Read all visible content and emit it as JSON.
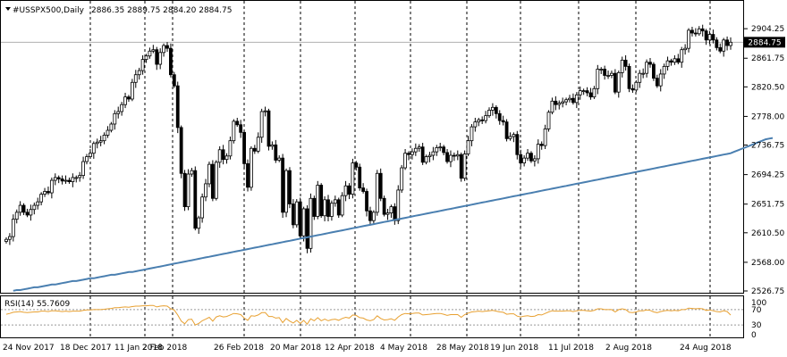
{
  "header": {
    "symbol_label": "#USSPX500,Daily",
    "ohlc_text": "2886.35 2889.75 2884.20 2884.75"
  },
  "current_price_badge": "2884.75",
  "colors": {
    "candle": "#000000",
    "moving_average": "#4a7fb0",
    "rsi_line": "#e8a030",
    "grid": "#000000",
    "badge_bg": "#000000",
    "badge_text": "#ffffff"
  },
  "chart_data": [
    {
      "type": "candlestick",
      "symbol": "#USSPX500",
      "timeframe": "Daily",
      "last_ohlc": {
        "open": 2886.35,
        "high": 2889.75,
        "low": 2884.2,
        "close": 2884.75
      },
      "ylim": [
        2526.75,
        2925.0
      ],
      "y_ticks": [
        "2904.25",
        "2861.75",
        "2820.50",
        "2778.00",
        "2736.75",
        "2694.25",
        "2651.75",
        "2610.50",
        "2568.00",
        "2526.75"
      ],
      "x_tick_labels": [
        "24 Nov 2017",
        "18 Dec 2017",
        "11 Jan 2018",
        "2 Feb 2018",
        "26 Feb 2018",
        "20 Mar 2018",
        "12 Apr 2018",
        "4 May 2018",
        "28 May 2018",
        "19 Jun 2018",
        "11 Jul 2018",
        "2 Aug 2018",
        "24 Aug 2018"
      ],
      "grid": "vertical dashed at date ticks",
      "closes": [
        2601,
        2605,
        2630,
        2640,
        2650,
        2640,
        2636,
        2644,
        2650,
        2655,
        2666,
        2670,
        2668,
        2686,
        2690,
        2688,
        2685,
        2686,
        2684,
        2690,
        2690,
        2693,
        2713,
        2720,
        2725,
        2739,
        2741,
        2743,
        2751,
        2758,
        2767,
        2782,
        2785,
        2795,
        2806,
        2803,
        2827,
        2838,
        2844,
        2860,
        2865,
        2872,
        2874,
        2853,
        2870,
        2880,
        2876,
        2838,
        2822,
        2762,
        2696,
        2648,
        2695,
        2700,
        2617,
        2632,
        2662,
        2681,
        2709,
        2660,
        2712,
        2730,
        2716,
        2721,
        2743,
        2771,
        2766,
        2755,
        2710,
        2676,
        2732,
        2728,
        2748,
        2785,
        2786,
        2735,
        2737,
        2715,
        2718,
        2640,
        2700,
        2652,
        2622,
        2655,
        2606,
        2645,
        2588,
        2660,
        2634,
        2679,
        2635,
        2658,
        2634,
        2653,
        2658,
        2636,
        2664,
        2678,
        2666,
        2711,
        2705,
        2675,
        2670,
        2642,
        2628,
        2640,
        2696,
        2660,
        2637,
        2639,
        2648,
        2628,
        2672,
        2704,
        2725,
        2723,
        2727,
        2732,
        2734,
        2712,
        2720,
        2722,
        2727,
        2733,
        2734,
        2726,
        2713,
        2722,
        2721,
        2723,
        2689,
        2724,
        2743,
        2763,
        2770,
        2773,
        2772,
        2779,
        2787,
        2791,
        2782,
        2772,
        2770,
        2746,
        2749,
        2752,
        2723,
        2711,
        2718,
        2725,
        2714,
        2717,
        2738,
        2736,
        2760,
        2784,
        2800,
        2795,
        2797,
        2799,
        2802,
        2804,
        2798,
        2809,
        2815,
        2815,
        2812,
        2806,
        2818,
        2846,
        2846,
        2837,
        2837,
        2840,
        2813,
        2841,
        2859,
        2850,
        2818,
        2816,
        2827,
        2840,
        2840,
        2856,
        2853,
        2833,
        2822,
        2839,
        2850,
        2858,
        2856,
        2861,
        2856,
        2874,
        2876,
        2902,
        2898,
        2897,
        2904,
        2901,
        2888,
        2896,
        2888,
        2877,
        2872,
        2888,
        2880,
        2884.75
      ],
      "moving_average_200": [
        2525,
        2526,
        2527,
        2528,
        2528,
        2529,
        2530,
        2531,
        2532,
        2532,
        2533,
        2534,
        2535,
        2536,
        2536,
        2537,
        2538,
        2539,
        2540,
        2541,
        2541,
        2542,
        2543,
        2544,
        2545,
        2545,
        2546,
        2547,
        2548,
        2549,
        2550,
        2550,
        2551,
        2552,
        2553,
        2554,
        2554,
        2555,
        2556,
        2557,
        2558,
        2559,
        2560,
        2561,
        2562,
        2563,
        2564,
        2565,
        2566,
        2567,
        2568,
        2569,
        2570,
        2571,
        2572,
        2573,
        2574,
        2575,
        2576,
        2577,
        2578,
        2579,
        2580,
        2581,
        2582,
        2583,
        2584,
        2585,
        2586,
        2587,
        2588,
        2589,
        2590,
        2591,
        2592,
        2593,
        2594,
        2595,
        2596,
        2597,
        2598,
        2599,
        2600,
        2601,
        2602,
        2603,
        2604,
        2605,
        2606,
        2607,
        2608,
        2609,
        2610,
        2611,
        2612,
        2613,
        2614,
        2615,
        2616,
        2617,
        2618,
        2619,
        2620,
        2621,
        2622,
        2623,
        2624,
        2625,
        2626,
        2627,
        2628,
        2629,
        2630,
        2631,
        2632,
        2633,
        2634,
        2635,
        2636,
        2637,
        2638,
        2639,
        2640,
        2641,
        2642,
        2643,
        2644,
        2645,
        2646,
        2647,
        2648,
        2649,
        2650,
        2651,
        2652,
        2653,
        2654,
        2655,
        2656,
        2657,
        2658,
        2659,
        2660,
        2661,
        2662,
        2663,
        2664,
        2665,
        2666,
        2667,
        2668,
        2669,
        2670,
        2671,
        2672,
        2673,
        2674,
        2675,
        2676,
        2677,
        2678,
        2679,
        2680,
        2681,
        2682,
        2683,
        2684,
        2685,
        2686,
        2687,
        2688,
        2689,
        2690,
        2691,
        2692,
        2693,
        2694,
        2695,
        2696,
        2697,
        2698,
        2699,
        2700,
        2701,
        2702,
        2703,
        2704,
        2705,
        2706,
        2707,
        2708,
        2709,
        2710,
        2711,
        2712,
        2713,
        2714,
        2715,
        2716,
        2717,
        2718,
        2719,
        2720,
        2721,
        2722,
        2723,
        2724,
        2725,
        2727,
        2729,
        2731,
        2733,
        2735,
        2737,
        2739,
        2741,
        2743,
        2745,
        2746,
        2747
      ]
    },
    {
      "type": "line",
      "title": "RSI(14) 55.7609",
      "indicator": "RSI",
      "period": 14,
      "last_value": 55.7609,
      "ylim": [
        0,
        100
      ],
      "y_ticks": [
        "100",
        "70",
        "30",
        "0"
      ],
      "levels": [
        30,
        70
      ],
      "values": [
        58,
        60,
        63,
        64,
        65,
        63,
        62,
        63,
        64,
        64,
        66,
        66,
        65,
        67,
        67,
        66,
        65,
        66,
        65,
        66,
        66,
        66,
        68,
        69,
        69,
        70,
        70,
        70,
        71,
        72,
        73,
        75,
        75,
        76,
        77,
        76,
        78,
        79,
        79,
        80,
        80,
        81,
        81,
        77,
        79,
        80,
        79,
        72,
        69,
        56,
        40,
        33,
        44,
        45,
        30,
        34,
        41,
        45,
        50,
        40,
        51,
        54,
        51,
        52,
        56,
        60,
        59,
        57,
        48,
        42,
        54,
        53,
        56,
        62,
        62,
        52,
        52,
        48,
        49,
        36,
        47,
        40,
        35,
        42,
        34,
        42,
        32,
        46,
        41,
        49,
        41,
        45,
        41,
        44,
        45,
        42,
        47,
        50,
        48,
        56,
        55,
        49,
        48,
        43,
        41,
        44,
        54,
        47,
        43,
        44,
        46,
        42,
        51,
        57,
        60,
        59,
        60,
        61,
        61,
        56,
        57,
        58,
        59,
        60,
        60,
        58,
        55,
        57,
        57,
        57,
        50,
        57,
        61,
        64,
        65,
        66,
        65,
        66,
        67,
        68,
        66,
        64,
        63,
        58,
        59,
        59,
        53,
        51,
        53,
        54,
        52,
        53,
        57,
        56,
        60,
        64,
        67,
        66,
        66,
        66,
        67,
        67,
        65,
        67,
        68,
        68,
        67,
        66,
        68,
        72,
        72,
        70,
        70,
        70,
        64,
        70,
        72,
        70,
        63,
        62,
        64,
        67,
        67,
        69,
        68,
        64,
        62,
        65,
        67,
        68,
        67,
        68,
        67,
        70,
        70,
        74,
        73,
        72,
        73,
        72,
        68,
        69,
        67,
        65,
        64,
        67,
        65,
        55.76
      ]
    }
  ]
}
